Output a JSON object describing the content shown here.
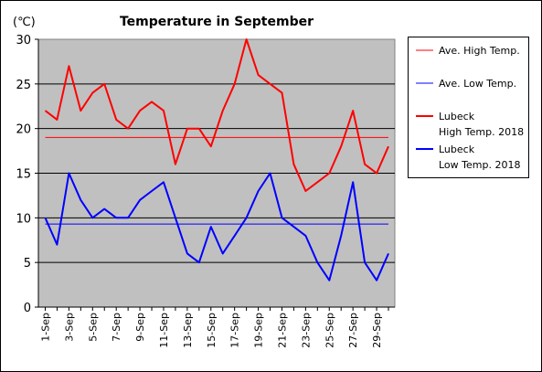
{
  "chart_data": {
    "type": "line",
    "title": "Temperature in September",
    "unit_label": "(℃)",
    "ylim": [
      0,
      30
    ],
    "y_ticks": [
      0,
      5,
      10,
      15,
      20,
      25,
      30
    ],
    "grid": "horizontal",
    "legend_position": "right",
    "x": [
      "1-Sep",
      "2-Sep",
      "3-Sep",
      "4-Sep",
      "5-Sep",
      "6-Sep",
      "7-Sep",
      "8-Sep",
      "9-Sep",
      "10-Sep",
      "11-Sep",
      "12-Sep",
      "13-Sep",
      "14-Sep",
      "15-Sep",
      "16-Sep",
      "17-Sep",
      "18-Sep",
      "19-Sep",
      "20-Sep",
      "21-Sep",
      "22-Sep",
      "23-Sep",
      "24-Sep",
      "25-Sep",
      "26-Sep",
      "27-Sep",
      "28-Sep",
      "29-Sep",
      "30-Sep"
    ],
    "x_tick_labels": [
      "1-Sep",
      "3-Sep",
      "5-Sep",
      "7-Sep",
      "9-Sep",
      "11-Sep",
      "13-Sep",
      "15-Sep",
      "17-Sep",
      "19-Sep",
      "21-Sep",
      "23-Sep",
      "25-Sep",
      "27-Sep",
      "29-Sep"
    ],
    "series": [
      {
        "name": "Ave. High Temp.",
        "color": "#ff0000",
        "width": 1,
        "constant": 19.0
      },
      {
        "name": "Ave. Low Temp.",
        "color": "#0000ff",
        "width": 1,
        "constant": 9.3
      },
      {
        "name": "Lubeck High Temp. 2018",
        "legend_lines": [
          "Lubeck",
          "High Temp. 2018"
        ],
        "color": "#ff0000",
        "width": 2,
        "values": [
          22,
          21,
          27,
          22,
          24,
          25,
          21,
          20,
          22,
          23,
          22,
          16,
          20,
          20,
          18,
          22,
          25,
          30,
          26,
          25,
          24,
          16,
          13,
          14,
          15,
          18,
          22,
          16,
          15,
          18
        ]
      },
      {
        "name": "Lubeck Low Temp. 2018",
        "legend_lines": [
          "Lubeck",
          "Low Temp. 2018"
        ],
        "color": "#0000ff",
        "width": 2,
        "values": [
          10,
          7,
          15,
          12,
          10,
          11,
          10,
          10,
          12,
          13,
          14,
          10,
          6,
          5,
          9,
          6,
          8,
          10,
          13,
          15,
          10,
          9,
          8,
          5,
          3,
          8,
          14,
          5,
          3,
          6
        ]
      }
    ]
  }
}
